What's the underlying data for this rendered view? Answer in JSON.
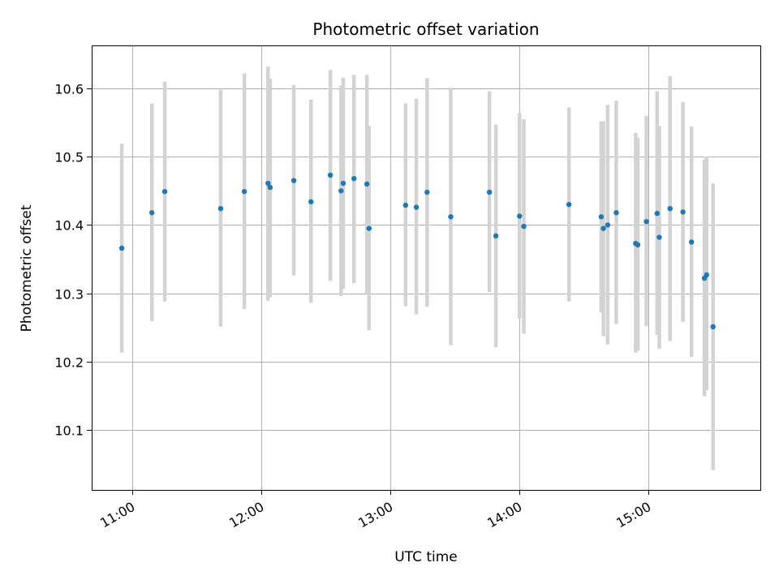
{
  "chart_data": {
    "type": "scatter",
    "title": "Photometric offset variation",
    "xlabel": "UTC time",
    "ylabel": "Photometric offset",
    "x_tick_labels": [
      "11:00",
      "12:00",
      "13:00",
      "14:00",
      "15:00"
    ],
    "y_tick_labels": [
      "10.1",
      "10.2",
      "10.3",
      "10.4",
      "10.5",
      "10.6"
    ],
    "x_ticks": [
      "11:00",
      "12:00",
      "13:00",
      "14:00",
      "15:00"
    ],
    "y_ticks": [
      10.1,
      10.2,
      10.3,
      10.4,
      10.5,
      10.6
    ],
    "xlim": [
      "10:41",
      "15:52"
    ],
    "ylim": [
      10.012,
      10.663
    ],
    "grid": true,
    "colors": {
      "point": "#1f77b4",
      "errorbar": "#d3d3d3",
      "grid": "#b0b0b0"
    },
    "series": [
      {
        "points": [
          {
            "x": "10:55",
            "y": 10.366,
            "ylo": 10.213,
            "yhi": 10.519
          },
          {
            "x": "11:09",
            "y": 10.418,
            "ylo": 10.259,
            "yhi": 10.578
          },
          {
            "x": "11:15",
            "y": 10.449,
            "ylo": 10.288,
            "yhi": 10.61
          },
          {
            "x": "11:41",
            "y": 10.424,
            "ylo": 10.251,
            "yhi": 10.598
          },
          {
            "x": "11:52",
            "y": 10.449,
            "ylo": 10.277,
            "yhi": 10.622
          },
          {
            "x": "12:03",
            "y": 10.461,
            "ylo": 10.289,
            "yhi": 10.632
          },
          {
            "x": "12:04",
            "y": 10.455,
            "ylo": 10.294,
            "yhi": 10.614
          },
          {
            "x": "12:15",
            "y": 10.465,
            "ylo": 10.326,
            "yhi": 10.605
          },
          {
            "x": "12:23",
            "y": 10.434,
            "ylo": 10.286,
            "yhi": 10.584
          },
          {
            "x": "12:32",
            "y": 10.473,
            "ylo": 10.318,
            "yhi": 10.627
          },
          {
            "x": "12:37",
            "y": 10.45,
            "ylo": 10.296,
            "yhi": 10.604
          },
          {
            "x": "12:38",
            "y": 10.461,
            "ylo": 10.306,
            "yhi": 10.616
          },
          {
            "x": "12:43",
            "y": 10.468,
            "ylo": 10.315,
            "yhi": 10.62
          },
          {
            "x": "12:49",
            "y": 10.46,
            "ylo": 10.3,
            "yhi": 10.62
          },
          {
            "x": "12:50",
            "y": 10.395,
            "ylo": 10.246,
            "yhi": 10.545
          },
          {
            "x": "13:07",
            "y": 10.429,
            "ylo": 10.281,
            "yhi": 10.578
          },
          {
            "x": "13:12",
            "y": 10.426,
            "ylo": 10.269,
            "yhi": 10.585
          },
          {
            "x": "13:17",
            "y": 10.448,
            "ylo": 10.28,
            "yhi": 10.615
          },
          {
            "x": "13:28",
            "y": 10.412,
            "ylo": 10.224,
            "yhi": 10.601
          },
          {
            "x": "13:46",
            "y": 10.448,
            "ylo": 10.302,
            "yhi": 10.596
          },
          {
            "x": "13:49",
            "y": 10.384,
            "ylo": 10.221,
            "yhi": 10.547
          },
          {
            "x": "14:00",
            "y": 10.413,
            "ylo": 10.263,
            "yhi": 10.564
          },
          {
            "x": "14:02",
            "y": 10.398,
            "ylo": 10.241,
            "yhi": 10.555
          },
          {
            "x": "14:23",
            "y": 10.43,
            "ylo": 10.288,
            "yhi": 10.572
          },
          {
            "x": "14:38",
            "y": 10.412,
            "ylo": 10.272,
            "yhi": 10.552
          },
          {
            "x": "14:39",
            "y": 10.395,
            "ylo": 10.237,
            "yhi": 10.552
          },
          {
            "x": "14:41",
            "y": 10.4,
            "ylo": 10.225,
            "yhi": 10.576
          },
          {
            "x": "14:45",
            "y": 10.418,
            "ylo": 10.255,
            "yhi": 10.582
          },
          {
            "x": "14:54",
            "y": 10.373,
            "ylo": 10.213,
            "yhi": 10.535
          },
          {
            "x": "14:55",
            "y": 10.371,
            "ylo": 10.216,
            "yhi": 10.528
          },
          {
            "x": "14:59",
            "y": 10.405,
            "ylo": 10.252,
            "yhi": 10.56
          },
          {
            "x": "15:04",
            "y": 10.417,
            "ylo": 10.239,
            "yhi": 10.596
          },
          {
            "x": "15:05",
            "y": 10.382,
            "ylo": 10.219,
            "yhi": 10.545
          },
          {
            "x": "15:10",
            "y": 10.424,
            "ylo": 10.23,
            "yhi": 10.618
          },
          {
            "x": "15:16",
            "y": 10.419,
            "ylo": 10.258,
            "yhi": 10.58
          },
          {
            "x": "15:20",
            "y": 10.375,
            "ylo": 10.207,
            "yhi": 10.544
          },
          {
            "x": "15:26",
            "y": 10.322,
            "ylo": 10.149,
            "yhi": 10.496
          },
          {
            "x": "15:27",
            "y": 10.327,
            "ylo": 10.158,
            "yhi": 10.5
          },
          {
            "x": "15:30",
            "y": 10.251,
            "ylo": 10.041,
            "yhi": 10.461
          }
        ]
      }
    ]
  }
}
